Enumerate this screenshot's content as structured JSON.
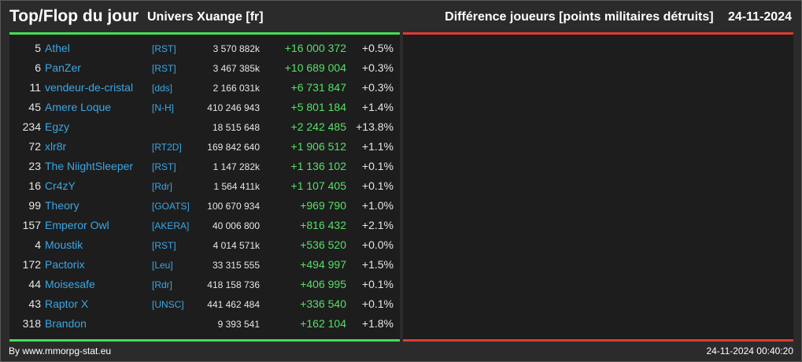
{
  "header": {
    "title": "Top/Flop du jour",
    "subtitle": "Univers Xuange [fr]",
    "description": "Différence joueurs [points militaires détruits]",
    "date": "24-11-2024"
  },
  "colors": {
    "gain": "#55e066",
    "loss": "#dd3b33",
    "link": "#3aa7e6",
    "panel": "#1d1d1d",
    "background": "#2b2b2b"
  },
  "top": [
    {
      "rank": "5",
      "name": "Athel",
      "tag": "[RST]",
      "points": "3 570 882k",
      "diff": "+16 000 372",
      "pct": "+0.5%"
    },
    {
      "rank": "6",
      "name": "PanZer",
      "tag": "[RST]",
      "points": "3 467 385k",
      "diff": "+10 689 004",
      "pct": "+0.3%"
    },
    {
      "rank": "11",
      "name": "vendeur-de-cristal",
      "tag": "[dds]",
      "points": "2 166 031k",
      "diff": "+6 731 847",
      "pct": "+0.3%"
    },
    {
      "rank": "45",
      "name": "Amere Loque",
      "tag": "[N-H]",
      "points": "410 246 943",
      "diff": "+5 801 184",
      "pct": "+1.4%"
    },
    {
      "rank": "234",
      "name": "Egzy",
      "tag": "",
      "points": "18 515 648",
      "diff": "+2 242 485",
      "pct": "+13.8%"
    },
    {
      "rank": "72",
      "name": "xlr8r",
      "tag": "[RT2D]",
      "points": "169 842 640",
      "diff": "+1 906 512",
      "pct": "+1.1%"
    },
    {
      "rank": "23",
      "name": "The NiightSleeper",
      "tag": "[RST]",
      "points": "1 147 282k",
      "diff": "+1 136 102",
      "pct": "+0.1%"
    },
    {
      "rank": "16",
      "name": "Cr4zY",
      "tag": "[Rdr]",
      "points": "1 564 411k",
      "diff": "+1 107 405",
      "pct": "+0.1%"
    },
    {
      "rank": "99",
      "name": "Theory",
      "tag": "[GOATS]",
      "points": "100 670 934",
      "diff": "+969 790",
      "pct": "+1.0%"
    },
    {
      "rank": "157",
      "name": "Emperor Owl",
      "tag": "[AKERA]",
      "points": "40 006 800",
      "diff": "+816 432",
      "pct": "+2.1%"
    },
    {
      "rank": "4",
      "name": "Moustik",
      "tag": "[RST]",
      "points": "4 014 571k",
      "diff": "+536 520",
      "pct": "+0.0%"
    },
    {
      "rank": "172",
      "name": "Pactorix",
      "tag": "[Leu]",
      "points": "33 315 555",
      "diff": "+494 997",
      "pct": "+1.5%"
    },
    {
      "rank": "44",
      "name": "Moisesafe",
      "tag": "[Rdr]",
      "points": "418 158 736",
      "diff": "+406 995",
      "pct": "+0.1%"
    },
    {
      "rank": "43",
      "name": "Raptor X",
      "tag": "[UNSC]",
      "points": "441 462 484",
      "diff": "+336 540",
      "pct": "+0.1%"
    },
    {
      "rank": "318",
      "name": "Brandon",
      "tag": "",
      "points": "9 393 541",
      "diff": "+162 104",
      "pct": "+1.8%"
    }
  ],
  "flop": [],
  "footer": {
    "credit": "By www.mmorpg-stat.eu",
    "timestamp": "24-11-2024 00:40:20"
  }
}
